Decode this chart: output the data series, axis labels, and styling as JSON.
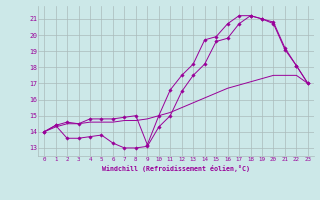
{
  "xlabel": "Windchill (Refroidissement éolien,°C)",
  "bg_color": "#cce8e8",
  "grid_color": "#aabbbb",
  "line_color": "#990099",
  "xlim": [
    -0.5,
    23.5
  ],
  "ylim": [
    12.5,
    21.8
  ],
  "yticks": [
    13,
    14,
    15,
    16,
    17,
    18,
    19,
    20,
    21
  ],
  "xticks": [
    0,
    1,
    2,
    3,
    4,
    5,
    6,
    7,
    8,
    9,
    10,
    11,
    12,
    13,
    14,
    15,
    16,
    17,
    18,
    19,
    20,
    21,
    22,
    23
  ],
  "line1_x": [
    0,
    1,
    2,
    3,
    4,
    5,
    6,
    7,
    8,
    9,
    10,
    11,
    12,
    13,
    14,
    15,
    16,
    17,
    18,
    19,
    20,
    21,
    22,
    23
  ],
  "line1_y": [
    14.0,
    14.4,
    13.6,
    13.6,
    13.7,
    13.8,
    13.3,
    13.0,
    13.0,
    13.1,
    14.3,
    15.0,
    16.5,
    17.5,
    18.2,
    19.6,
    19.8,
    20.7,
    21.2,
    21.0,
    20.7,
    19.1,
    18.1,
    17.0
  ],
  "line2_x": [
    0,
    1,
    2,
    3,
    4,
    5,
    6,
    7,
    8,
    9,
    10,
    11,
    12,
    13,
    14,
    15,
    16,
    17,
    18,
    19,
    20,
    21,
    22,
    23
  ],
  "line2_y": [
    14.0,
    14.3,
    14.5,
    14.5,
    14.6,
    14.6,
    14.6,
    14.7,
    14.7,
    14.8,
    15.0,
    15.2,
    15.5,
    15.8,
    16.1,
    16.4,
    16.7,
    16.9,
    17.1,
    17.3,
    17.5,
    17.5,
    17.5,
    17.0
  ],
  "line3_x": [
    0,
    1,
    2,
    3,
    4,
    5,
    6,
    7,
    8,
    9,
    10,
    11,
    12,
    13,
    14,
    15,
    16,
    17,
    18,
    19,
    20,
    21,
    22,
    23
  ],
  "line3_y": [
    14.0,
    14.4,
    14.6,
    14.5,
    14.8,
    14.8,
    14.8,
    14.9,
    15.0,
    13.2,
    15.0,
    16.6,
    17.5,
    18.2,
    19.7,
    19.9,
    20.7,
    21.2,
    21.2,
    21.0,
    20.8,
    19.2,
    18.1,
    17.0
  ]
}
